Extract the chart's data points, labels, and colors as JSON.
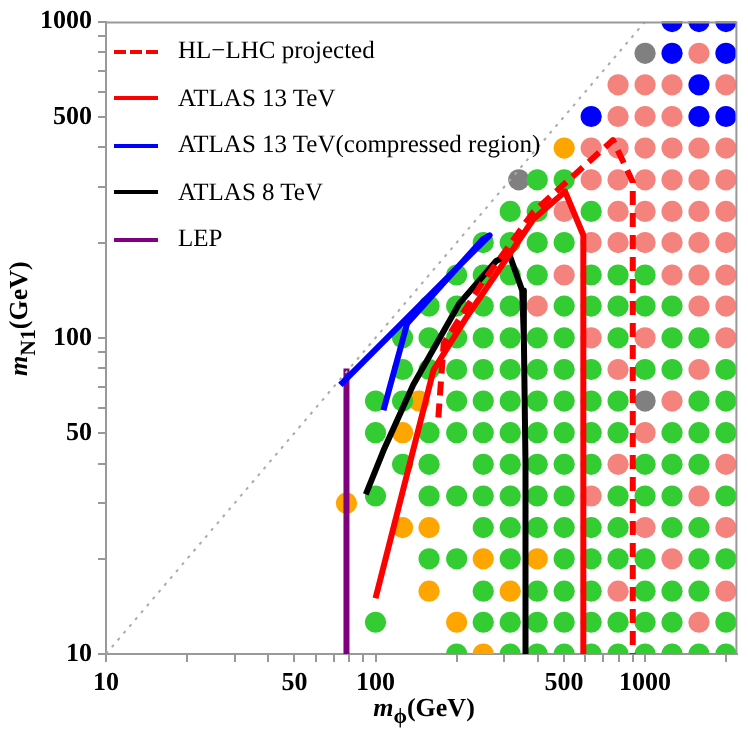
{
  "chart_data": {
    "type": "scatter",
    "xlabel": "m$_{ϕ}$(GeV)",
    "ylabel": "m$_{N1}$(GeV)",
    "log": "xy",
    "xlim": [
      10,
      2200
    ],
    "ylim": [
      10,
      1000
    ],
    "xticks": [
      10,
      {
        "value": 20,
        "label": null
      },
      {
        "value": 30,
        "label": null
      },
      {
        "value": 40,
        "label": null
      },
      50,
      {
        "value": 60,
        "label": null
      },
      {
        "value": 70,
        "label": null
      },
      {
        "value": 80,
        "label": null
      },
      {
        "value": 90,
        "label": null
      },
      100,
      {
        "value": 200,
        "label": null
      },
      {
        "value": 300,
        "label": null
      },
      {
        "value": 400,
        "label": null
      },
      500,
      {
        "value": 600,
        "label": null
      },
      {
        "value": 700,
        "label": null
      },
      {
        "value": 800,
        "label": null
      },
      {
        "value": 900,
        "label": null
      },
      1000,
      {
        "value": 2000,
        "label": null
      }
    ],
    "yticks": [
      10,
      {
        "value": 20,
        "label": null
      },
      {
        "value": 30,
        "label": null
      },
      {
        "value": 40,
        "label": null
      },
      50,
      {
        "value": 60,
        "label": null
      },
      {
        "value": 70,
        "label": null
      },
      {
        "value": 80,
        "label": null
      },
      {
        "value": 90,
        "label": null
      },
      100,
      {
        "value": 200,
        "label": null
      },
      {
        "value": 300,
        "label": null
      },
      {
        "value": 400,
        "label": null
      },
      500,
      {
        "value": 600,
        "label": null
      },
      {
        "value": 700,
        "label": null
      },
      {
        "value": 800,
        "label": null
      },
      {
        "value": 900,
        "label": null
      },
      1000
    ],
    "grid": false,
    "legend": "top left",
    "marker": "circle",
    "series": [
      {
        "color": "#33cc33",
        "x": [
          100,
          100,
          100,
          100,
          126,
          126,
          126,
          126,
          158,
          158,
          158,
          158,
          158,
          158,
          158,
          200,
          200,
          200,
          200,
          200,
          200,
          200,
          200,
          200,
          251,
          251,
          251,
          251,
          251,
          251,
          251,
          251,
          251,
          251,
          251,
          251,
          316,
          316,
          316,
          316,
          316,
          316,
          316,
          316,
          316,
          316,
          316,
          316,
          316,
          316,
          398,
          398,
          398,
          398,
          398,
          398,
          398,
          398,
          398,
          398,
          398,
          398,
          398,
          398,
          501,
          501,
          501,
          501,
          501,
          501,
          501,
          501,
          501,
          501,
          501,
          501,
          501,
          501,
          631,
          631,
          631,
          631,
          631,
          631,
          631,
          631,
          631,
          631,
          631,
          631,
          794,
          794,
          794,
          794,
          794,
          794,
          794,
          794,
          794,
          794,
          1000,
          1000,
          1000,
          1000,
          1000,
          1000,
          1000,
          1000,
          1000,
          1259,
          1259,
          1259,
          1259,
          1259,
          1259,
          1259,
          1259,
          1259,
          1259,
          1585,
          1585,
          1585,
          1585,
          1585,
          1585,
          1585,
          1585,
          1995,
          1995,
          1995,
          1995,
          1995,
          1995,
          1995
        ],
        "values": [
          12.6,
          31.6,
          50.1,
          63.1,
          39.8,
          63.1,
          79.4,
          100,
          20,
          31.6,
          39.8,
          50.1,
          79.4,
          100,
          126,
          10,
          20,
          31.6,
          50.1,
          63.1,
          79.4,
          100,
          126,
          158,
          12.6,
          15.8,
          25.1,
          31.6,
          39.8,
          50.1,
          63.1,
          79.4,
          100,
          126,
          158,
          200,
          10,
          12.6,
          20,
          25.1,
          31.6,
          39.8,
          50.1,
          63.1,
          79.4,
          100,
          126,
          158,
          200,
          251,
          10,
          12.6,
          15.8,
          25.1,
          31.6,
          39.8,
          50.1,
          63.1,
          79.4,
          100,
          158,
          200,
          251,
          316,
          10,
          12.6,
          15.8,
          20,
          25.1,
          31.6,
          39.8,
          50.1,
          63.1,
          79.4,
          100,
          126,
          200,
          316,
          10,
          12.6,
          15.8,
          20,
          25.1,
          39.8,
          50.1,
          63.1,
          79.4,
          126,
          158,
          251,
          10,
          12.6,
          20,
          25.1,
          31.6,
          50.1,
          63.1,
          100,
          126,
          158,
          10,
          12.6,
          15.8,
          20,
          31.6,
          39.8,
          79.4,
          126,
          158,
          10,
          12.6,
          15.8,
          25.1,
          31.6,
          39.8,
          50.1,
          79.4,
          100,
          126,
          10,
          15.8,
          20,
          25.1,
          39.8,
          50.1,
          63.1,
          100,
          10,
          12.6,
          20,
          31.6,
          50.1,
          63.1,
          79.4
        ]
      },
      {
        "color": "#f4837d",
        "x": [
          398,
          501,
          501,
          631,
          631,
          631,
          631,
          631,
          794,
          794,
          794,
          794,
          794,
          794,
          794,
          794,
          794,
          1000,
          1000,
          1000,
          1000,
          1000,
          1000,
          1000,
          1000,
          1000,
          1259,
          1259,
          1259,
          1259,
          1259,
          1259,
          1259,
          1259,
          1259,
          1585,
          1585,
          1585,
          1585,
          1585,
          1585,
          1585,
          1585,
          1585,
          1585,
          1995,
          1995,
          1995,
          1995,
          1995,
          1995,
          1995,
          1995,
          1995,
          1995,
          1995
        ],
        "values": [
          126,
          158,
          251,
          31.6,
          100,
          200,
          316,
          398,
          15.8,
          39.8,
          79.4,
          200,
          251,
          316,
          398,
          501,
          631,
          25.1,
          50.1,
          100,
          200,
          251,
          316,
          398,
          501,
          631,
          20,
          63.1,
          158,
          200,
          251,
          316,
          398,
          501,
          631,
          12.6,
          31.6,
          79.4,
          126,
          158,
          200,
          251,
          316,
          398,
          794,
          15.8,
          25.1,
          39.8,
          100,
          126,
          158,
          200,
          251,
          316,
          398,
          631
        ]
      },
      {
        "color": "#ffa500",
        "x": [
          78,
          126,
          126,
          158,
          158,
          145,
          200,
          251,
          251,
          316,
          398,
          501
        ],
        "values": [
          30,
          25.1,
          50.1,
          15.8,
          25.1,
          63.1,
          12.6,
          10,
          20,
          15.8,
          20,
          398
        ]
      },
      {
        "color": "#0000ff",
        "x": [
          631,
          1259,
          1259,
          1585,
          1585,
          1585,
          1995,
          1995,
          1995
        ],
        "values": [
          501,
          794,
          1000,
          501,
          631,
          1000,
          501,
          794,
          1000
        ]
      },
      {
        "color": "#808080",
        "x": [
          340,
          1000,
          1000
        ],
        "values": [
          316,
          63.1,
          794
        ]
      },
      {
        "type": "line",
        "marker": "none",
        "line_style": "dotted",
        "color": "#aaaaaa",
        "x": [
          10,
          1000
        ],
        "values": [
          10,
          1000
        ]
      },
      {
        "name": "HL−LHC projected",
        "type": "line",
        "marker": "none",
        "line_style": "dashed",
        "color": "#ff0000",
        "x": [
          171,
          179,
          250,
          385,
          760,
          900,
          900
        ],
        "values": [
          56,
          96,
          150,
          250,
          422,
          311,
          10
        ]
      },
      {
        "name": "ATLAS 13 TeV",
        "type": "line",
        "marker": "none",
        "line_style": "solid",
        "color": "#ff0000",
        "x": [
          100,
          164,
          216,
          385,
          505,
          590,
          590
        ],
        "values": [
          15,
          79,
          115,
          237,
          290,
          211,
          10
        ]
      },
      {
        "name": "ATLAS 13 TeV(compressed region)",
        "type": "line",
        "marker": "none",
        "line_style": "solid",
        "color": "#0000ff",
        "x": [
          74,
          265,
          250,
          131,
          107
        ],
        "values": [
          71,
          211,
          205,
          111,
          59
        ]
      },
      {
        "name": "ATLAS 8 TeV",
        "type": "line",
        "marker": "none",
        "line_style": "solid",
        "color": "#000000",
        "x": [
          92,
          107,
          138,
          204,
          280,
          314,
          350,
          355,
          360,
          360
        ],
        "values": [
          32,
          44,
          71,
          128,
          175,
          183,
          141,
          100,
          40,
          10
        ]
      },
      {
        "name": "LEP",
        "type": "line",
        "marker": "none",
        "line_style": "solid",
        "color": "#800080",
        "x": [
          78,
          78
        ],
        "values": [
          10,
          80
        ]
      }
    ]
  }
}
